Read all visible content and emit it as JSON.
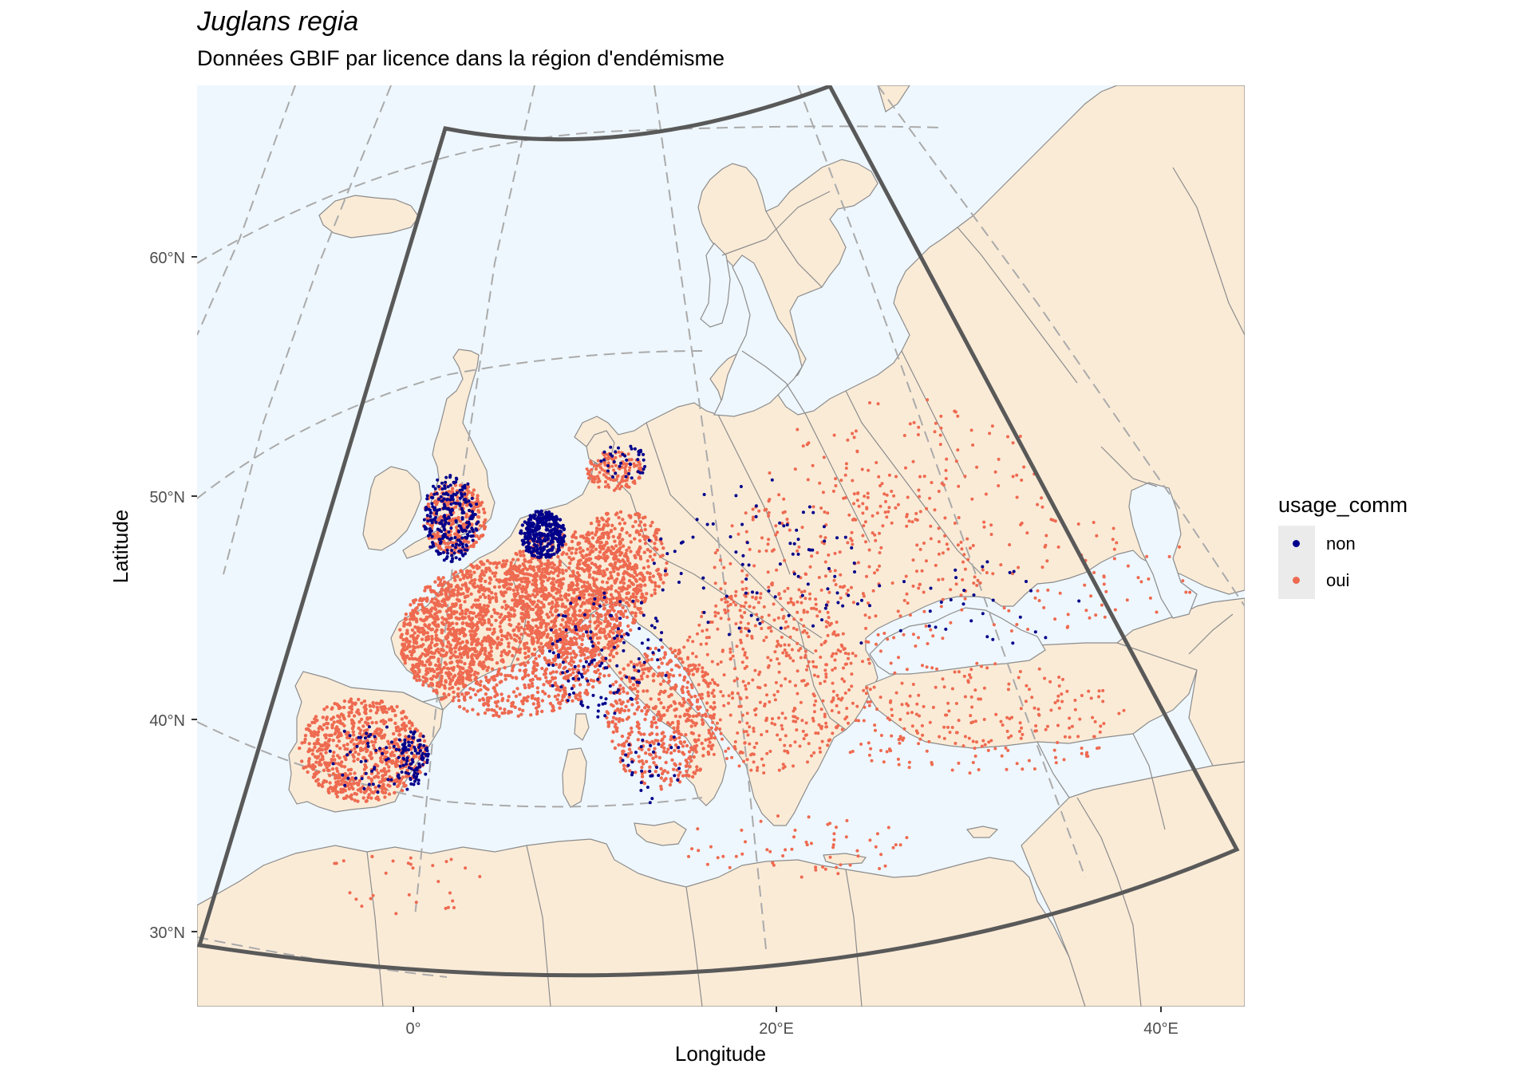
{
  "title": "Juglans regia",
  "subtitle": "Données GBIF par licence dans la région d'endémisme",
  "xlabel": "Longitude",
  "ylabel": "Latitude",
  "x_ticks": [
    "0°",
    "20°E",
    "40°E"
  ],
  "y_ticks": [
    "60°N",
    "50°N",
    "40°N",
    "30°N"
  ],
  "legend": {
    "title": "usage_comm",
    "items": [
      {
        "label": "non",
        "color": "#00008b"
      },
      {
        "label": "oui",
        "color": "#ee6a50"
      }
    ]
  },
  "colors": {
    "sea": "#eef7fd",
    "land": "#faebd7",
    "border": "#8c8c8c",
    "graticule": "#aaaaaa",
    "region": "#595959",
    "non": "#00008b",
    "oui": "#ee6a50"
  },
  "chart_data": {
    "type": "scatter",
    "projection": "conic",
    "title": "Juglans regia",
    "xlabel": "Longitude",
    "ylabel": "Latitude",
    "series": [
      {
        "name": "non"
      },
      {
        "name": "oui"
      }
    ]
  }
}
